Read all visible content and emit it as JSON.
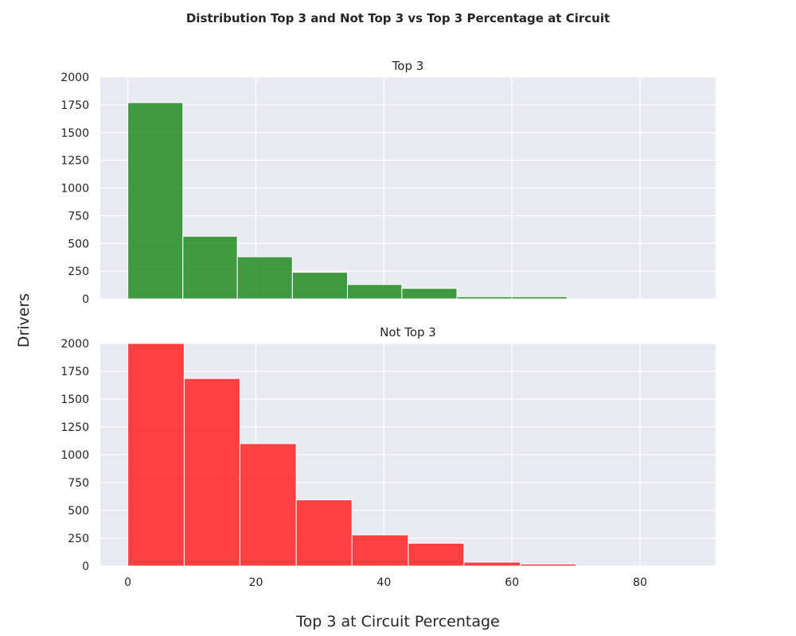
{
  "chart_data": {
    "type": "bar",
    "title": "Distribution Top 3 and Not Top 3 vs Top 3 Percentage at Circuit",
    "xlabel": "Top 3 at Circuit Percentage",
    "ylabel": "Drivers",
    "xlim": [
      -4.3,
      91.8
    ],
    "ylim": [
      0,
      2000
    ],
    "x_ticks": [
      0,
      20,
      40,
      60,
      80
    ],
    "y_ticks": [
      0,
      250,
      500,
      750,
      1000,
      1250,
      1500,
      1750,
      2000
    ],
    "grid": true,
    "panels": [
      {
        "name": "Top 3",
        "color": "#228b22",
        "bins": [
          {
            "x0": 0,
            "x1": 8.6,
            "value": 1770
          },
          {
            "x0": 8.6,
            "x1": 17.1,
            "value": 565
          },
          {
            "x0": 17.1,
            "x1": 25.7,
            "value": 380
          },
          {
            "x0": 25.7,
            "x1": 34.3,
            "value": 240
          },
          {
            "x0": 34.3,
            "x1": 42.8,
            "value": 130
          },
          {
            "x0": 42.8,
            "x1": 51.4,
            "value": 95
          },
          {
            "x0": 51.4,
            "x1": 60.0,
            "value": 20
          },
          {
            "x0": 60.0,
            "x1": 68.6,
            "value": 20
          },
          {
            "x0": 68.6,
            "x1": 77.1,
            "value": 0
          },
          {
            "x0": 77.1,
            "x1": 85.7,
            "value": 0
          }
        ]
      },
      {
        "name": "Not Top 3",
        "color": "#ff2222",
        "bins": [
          {
            "x0": 0,
            "x1": 8.8,
            "value": 2000
          },
          {
            "x0": 8.8,
            "x1": 17.5,
            "value": 1685
          },
          {
            "x0": 17.5,
            "x1": 26.3,
            "value": 1100
          },
          {
            "x0": 26.3,
            "x1": 35.0,
            "value": 595
          },
          {
            "x0": 35.0,
            "x1": 43.8,
            "value": 280
          },
          {
            "x0": 43.8,
            "x1": 52.5,
            "value": 205
          },
          {
            "x0": 52.5,
            "x1": 61.3,
            "value": 35
          },
          {
            "x0": 61.3,
            "x1": 70.0,
            "value": 18
          },
          {
            "x0": 70.0,
            "x1": 78.8,
            "value": 0
          },
          {
            "x0": 78.8,
            "x1": 87.5,
            "value": 0
          }
        ]
      }
    ]
  }
}
